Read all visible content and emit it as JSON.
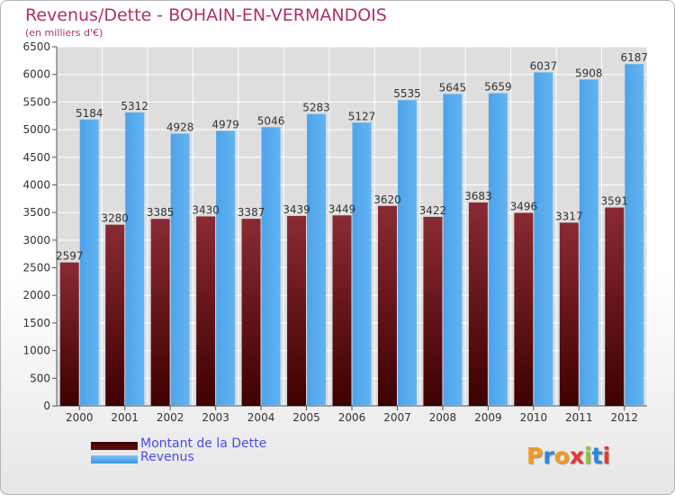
{
  "title": "Revenus/Dette - BOHAIN-EN-VERMANDOIS",
  "subtitle": "(en milliers d'€)",
  "logo": {
    "text": "Proxiti",
    "colors": [
      "#f39a1e",
      "#2f86d6",
      "#f39a1e",
      "#e23b2e",
      "#8bc43f",
      "#2f86d6",
      "#e23b2e"
    ]
  },
  "colors": {
    "debt": "#6b0f18",
    "revenue": "#3d97e4",
    "title": "#b0306a",
    "legend_text": "#4a4af0"
  },
  "chart_data": {
    "type": "bar",
    "title": "Revenus/Dette - BOHAIN-EN-VERMANDOIS",
    "ylabel": "(en milliers d'€)",
    "ylim": [
      0,
      6500
    ],
    "yticks": [
      0,
      500,
      1000,
      1500,
      2000,
      2500,
      3000,
      3500,
      4000,
      4500,
      5000,
      5500,
      6000,
      6500
    ],
    "grid": true,
    "legend_position": "bottom-left",
    "categories": [
      "2000",
      "2001",
      "2002",
      "2003",
      "2004",
      "2005",
      "2006",
      "2007",
      "2008",
      "2009",
      "2010",
      "2011",
      "2012"
    ],
    "series": [
      {
        "name": "Montant de la Dette",
        "values": [
          2597,
          3280,
          3385,
          3430,
          3387,
          3439,
          3449,
          3620,
          3422,
          3683,
          3496,
          3317,
          3591
        ]
      },
      {
        "name": "Revenus",
        "values": [
          5184,
          5312,
          4928,
          4979,
          5046,
          5283,
          5127,
          5535,
          5645,
          5659,
          6037,
          5908,
          6187
        ]
      }
    ]
  }
}
